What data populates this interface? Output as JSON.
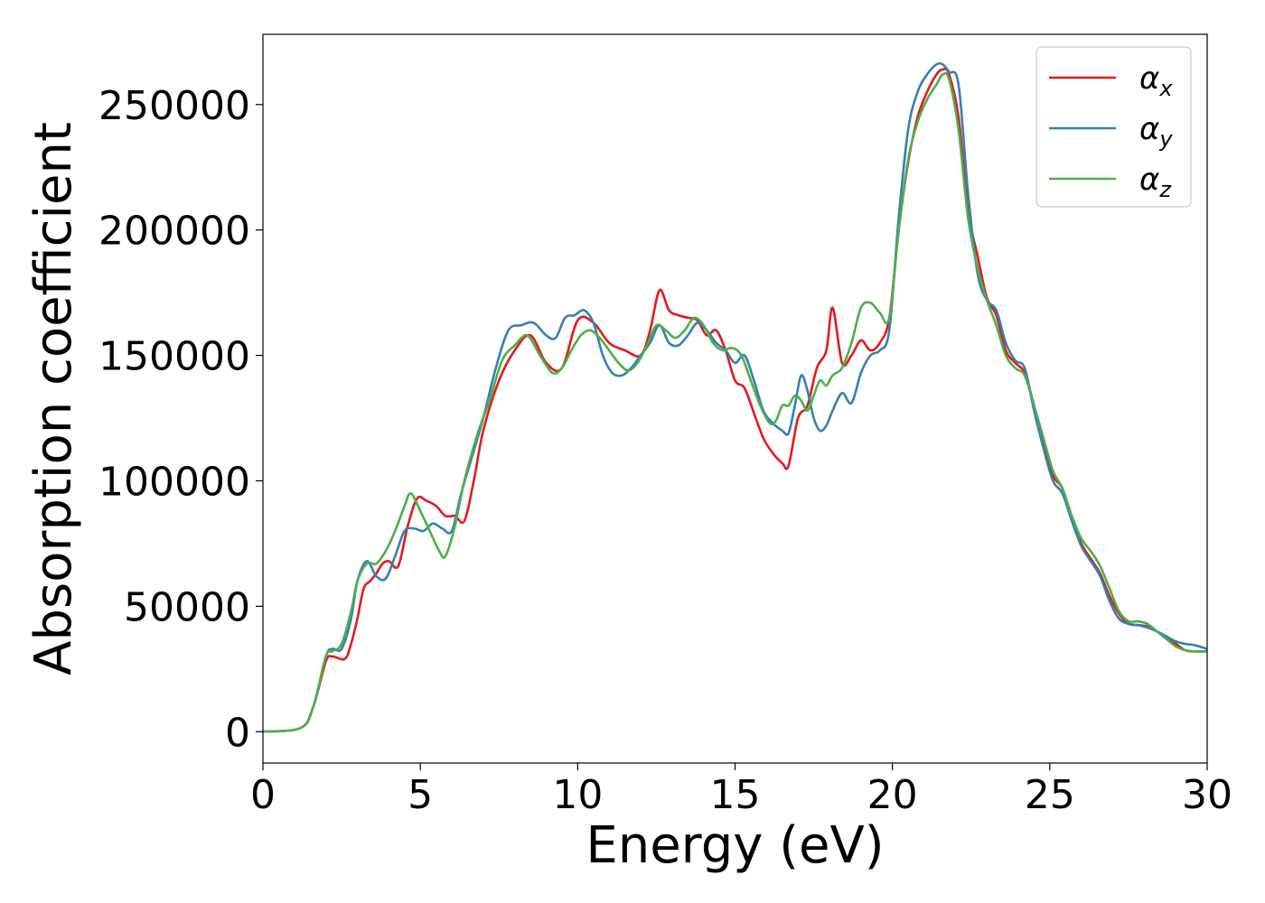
{
  "chart_data": {
    "type": "line",
    "title": "",
    "xlabel": "Energy (eV)",
    "ylabel": "Absorption coefficient",
    "xlim": [
      0,
      30
    ],
    "ylim": [
      -12500,
      278000
    ],
    "xticks": [
      0,
      5,
      10,
      15,
      20,
      25,
      30
    ],
    "yticks": [
      0,
      50000,
      100000,
      150000,
      200000,
      250000
    ],
    "xtick_labels": [
      "0",
      "5",
      "10",
      "15",
      "20",
      "25",
      "30"
    ],
    "ytick_labels": [
      "0",
      "50000",
      "100000",
      "150000",
      "200000",
      "250000"
    ],
    "grid": false,
    "legend_position": "top-right",
    "series": [
      {
        "name": "α",
        "subscript": "x",
        "color": "#e41a1c",
        "x": [
          0,
          1.2,
          1.6,
          2.0,
          2.2,
          2.6,
          2.8,
          3.0,
          3.2,
          3.4,
          3.6,
          3.8,
          4.0,
          4.3,
          4.6,
          4.9,
          5.2,
          5.5,
          5.8,
          6.1,
          6.4,
          6.7,
          7.0,
          7.5,
          8.0,
          8.5,
          9.0,
          9.5,
          10.0,
          10.5,
          11.0,
          11.5,
          12.0,
          12.3,
          12.6,
          12.9,
          13.2,
          13.5,
          13.8,
          14.1,
          14.4,
          14.7,
          15.0,
          15.3,
          15.6,
          15.9,
          16.2,
          16.5,
          16.7,
          17.0,
          17.3,
          17.6,
          17.9,
          18.1,
          18.4,
          18.7,
          19.0,
          19.3,
          19.6,
          19.9,
          20.2,
          20.5,
          20.8,
          21.1,
          21.4,
          21.6,
          21.8,
          22.1,
          22.4,
          22.7,
          23.0,
          23.3,
          23.6,
          23.9,
          24.2,
          24.5,
          24.8,
          25.1,
          25.4,
          25.7,
          26.0,
          26.3,
          26.6,
          26.9,
          27.2,
          27.5,
          27.8,
          28.1,
          28.4,
          28.7,
          29.0,
          29.3,
          29.6,
          30.0
        ],
        "y": [
          0,
          1500,
          10000,
          28000,
          30000,
          29000,
          35000,
          45000,
          57000,
          60000,
          63000,
          67000,
          68000,
          66000,
          82000,
          93000,
          92000,
          90000,
          86000,
          86000,
          84000,
          100000,
          120000,
          140000,
          152000,
          158000,
          147000,
          145000,
          164000,
          163000,
          155000,
          152000,
          150000,
          160000,
          176000,
          168000,
          166000,
          165000,
          164000,
          158000,
          160000,
          152000,
          140000,
          137000,
          127000,
          117000,
          111000,
          107000,
          106000,
          125000,
          130000,
          145000,
          152000,
          169000,
          147000,
          150000,
          156000,
          152000,
          155000,
          165000,
          200000,
          227000,
          245000,
          255000,
          262000,
          264000,
          262000,
          245000,
          208000,
          190000,
          173000,
          166000,
          152000,
          147000,
          143000,
          130000,
          115000,
          102000,
          97000,
          85000,
          75000,
          69000,
          63000,
          54000,
          47000,
          43000,
          42500,
          42000,
          40000,
          37000,
          35000,
          32500,
          32000,
          32000
        ]
      },
      {
        "name": "α",
        "subscript": "y",
        "color": "#377eb8",
        "x": [
          0,
          1.2,
          1.6,
          2.0,
          2.2,
          2.5,
          2.8,
          3.0,
          3.3,
          3.6,
          3.9,
          4.2,
          4.5,
          4.8,
          5.1,
          5.4,
          5.7,
          6.0,
          6.3,
          6.7,
          7.0,
          7.4,
          7.8,
          8.2,
          8.6,
          9.0,
          9.3,
          9.6,
          9.9,
          10.2,
          10.5,
          10.8,
          11.1,
          11.4,
          11.7,
          12.0,
          12.3,
          12.6,
          12.9,
          13.2,
          13.5,
          13.8,
          14.1,
          14.4,
          14.7,
          15.0,
          15.3,
          15.6,
          15.9,
          16.2,
          16.5,
          16.7,
          16.9,
          17.1,
          17.3,
          17.5,
          17.7,
          17.9,
          18.1,
          18.4,
          18.7,
          19.0,
          19.3,
          19.6,
          19.9,
          20.2,
          20.5,
          20.8,
          21.1,
          21.4,
          21.6,
          21.8,
          22.1,
          22.4,
          22.7,
          23.0,
          23.3,
          23.6,
          23.9,
          24.2,
          24.5,
          24.8,
          25.1,
          25.4,
          25.7,
          26.0,
          26.3,
          26.6,
          26.9,
          27.2,
          27.5,
          27.8,
          28.1,
          28.4,
          28.7,
          29.0,
          29.3,
          29.6,
          30.0
        ],
        "y": [
          0,
          1500,
          10000,
          30000,
          33000,
          33000,
          45000,
          60000,
          68000,
          62000,
          61000,
          70000,
          80000,
          81000,
          80000,
          83000,
          81000,
          80000,
          95000,
          112000,
          125000,
          145000,
          160000,
          162000,
          163000,
          158000,
          157000,
          165000,
          166000,
          168000,
          163000,
          150000,
          143000,
          142000,
          145000,
          150000,
          155000,
          162000,
          155000,
          154000,
          158000,
          163000,
          160000,
          155000,
          152000,
          147000,
          150000,
          140000,
          128000,
          123000,
          120000,
          119000,
          130000,
          142000,
          136000,
          125000,
          120000,
          122000,
          128000,
          135000,
          131000,
          143000,
          150000,
          152000,
          160000,
          205000,
          240000,
          255000,
          262000,
          266000,
          266000,
          263000,
          258000,
          215000,
          183000,
          172000,
          168000,
          155000,
          148000,
          145000,
          128000,
          113000,
          100000,
          95000,
          84000,
          74000,
          68000,
          62000,
          52000,
          45000,
          43000,
          42500,
          41500,
          40000,
          38000,
          36000,
          35000,
          34500,
          33000
        ]
      },
      {
        "name": "α",
        "subscript": "z",
        "color": "#4daf4a",
        "x": [
          0,
          1.2,
          1.6,
          2.0,
          2.2,
          2.5,
          2.8,
          3.0,
          3.3,
          3.6,
          3.9,
          4.2,
          4.5,
          4.7,
          5.0,
          5.3,
          5.6,
          5.8,
          6.1,
          6.4,
          6.8,
          7.2,
          7.6,
          8.0,
          8.4,
          8.8,
          9.2,
          9.5,
          9.8,
          10.1,
          10.4,
          10.7,
          11.0,
          11.3,
          11.6,
          11.9,
          12.2,
          12.5,
          12.8,
          13.1,
          13.4,
          13.7,
          14.0,
          14.3,
          14.6,
          14.9,
          15.2,
          15.5,
          15.8,
          16.1,
          16.3,
          16.5,
          16.7,
          16.9,
          17.1,
          17.3,
          17.5,
          17.7,
          17.9,
          18.1,
          18.4,
          18.7,
          19.0,
          19.3,
          19.6,
          19.9,
          20.2,
          20.5,
          20.8,
          21.1,
          21.4,
          21.6,
          21.8,
          22.1,
          22.4,
          22.7,
          23.0,
          23.3,
          23.6,
          23.9,
          24.2,
          24.5,
          24.8,
          25.1,
          25.4,
          25.7,
          26.0,
          26.3,
          26.6,
          26.9,
          27.2,
          27.5,
          27.8,
          28.1,
          28.4,
          28.7,
          29.0,
          29.3,
          29.6,
          30.0
        ],
        "y": [
          0,
          1500,
          10000,
          30000,
          32000,
          35000,
          48000,
          60000,
          67000,
          67000,
          72000,
          80000,
          90000,
          95000,
          88000,
          80000,
          72000,
          70000,
          82000,
          100000,
          118000,
          132000,
          148000,
          154000,
          158000,
          150000,
          143000,
          145000,
          152000,
          158000,
          160000,
          157000,
          152000,
          147000,
          144000,
          147000,
          154000,
          162000,
          160000,
          157000,
          160000,
          165000,
          162000,
          155000,
          152000,
          153000,
          150000,
          140000,
          130000,
          123000,
          124000,
          130000,
          130000,
          134000,
          132000,
          128000,
          134000,
          140000,
          138000,
          142000,
          145000,
          155000,
          169000,
          171000,
          167000,
          165000,
          200000,
          228000,
          243000,
          252000,
          258000,
          262000,
          260000,
          240000,
          205000,
          185000,
          172000,
          162000,
          150000,
          145000,
          142000,
          130000,
          117000,
          104000,
          97000,
          86000,
          77000,
          72000,
          66000,
          57000,
          48000,
          44000,
          44000,
          43000,
          40000,
          37000,
          34000,
          32500,
          32000,
          32000
        ]
      }
    ]
  }
}
